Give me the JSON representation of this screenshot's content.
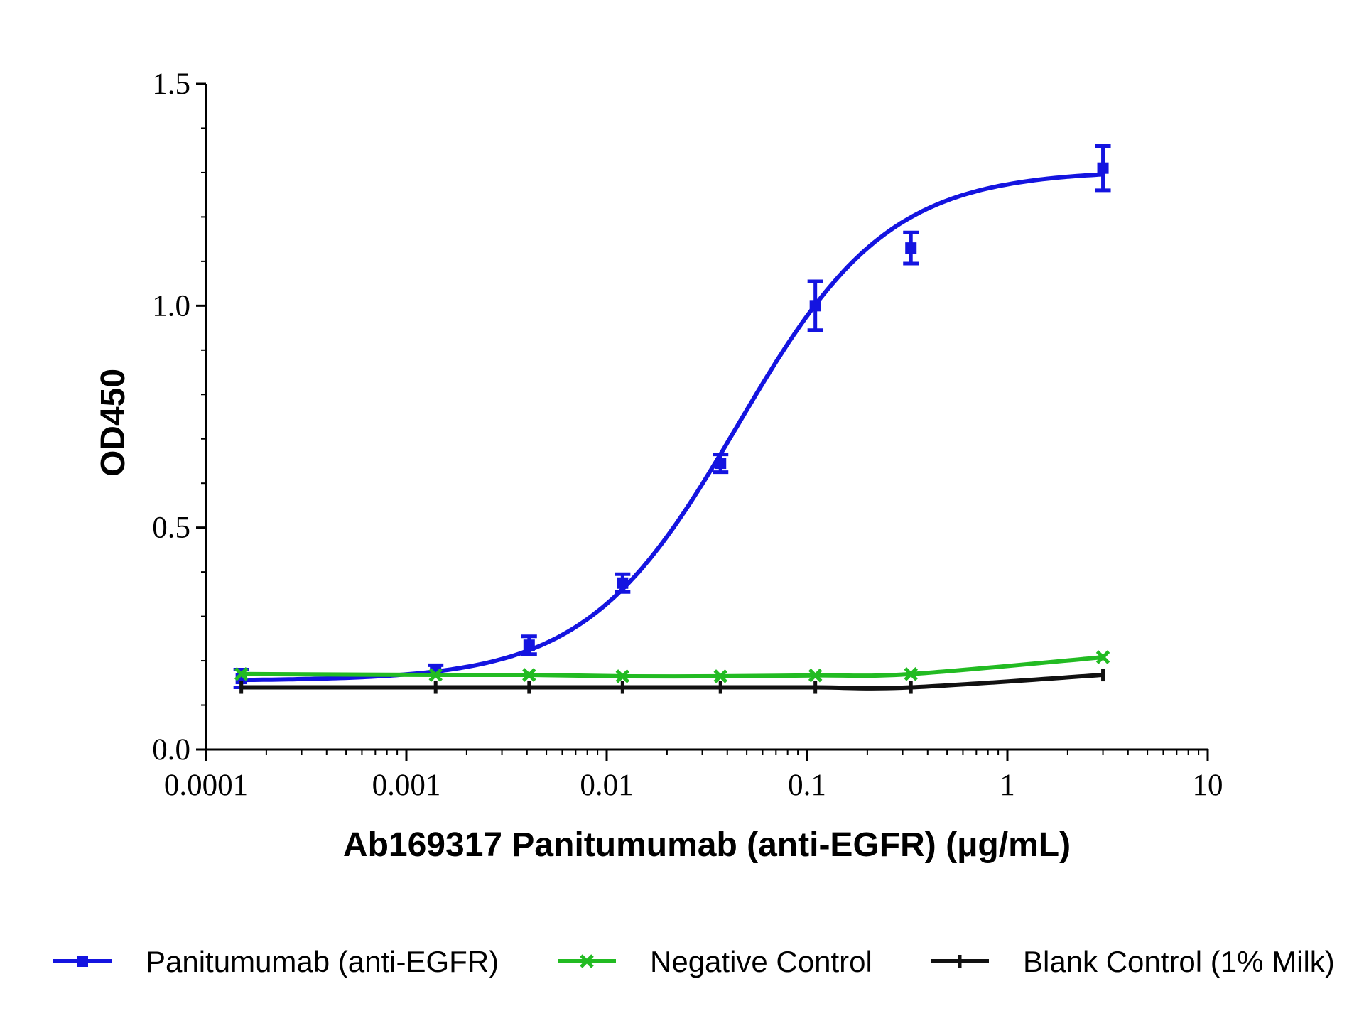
{
  "chart_data": {
    "type": "line",
    "title": "",
    "xlabel": "Ab169317 Panitumumab (anti-EGFR) (μg/mL)",
    "ylabel": "OD450",
    "xscale": "log",
    "xlim": [
      0.0001,
      10
    ],
    "ylim": [
      0.0,
      1.5
    ],
    "x_tick_labels": [
      "0.0001",
      "0.001",
      "0.01",
      "0.1",
      "1",
      "10"
    ],
    "y_tick_labels": [
      "0.0",
      "0.5",
      "1.0",
      "1.5"
    ],
    "grid": false,
    "legend_position": "bottom",
    "series": [
      {
        "name": "Panitumumab (anti-EGFR)",
        "color": "#1414e0",
        "marker": "square",
        "fit": "4PL",
        "x": [
          0.00015,
          0.0014,
          0.0041,
          0.012,
          0.037,
          0.11,
          0.33,
          3.0
        ],
        "y": [
          0.16,
          0.18,
          0.235,
          0.375,
          0.645,
          1.0,
          1.13,
          1.31
        ],
        "error": [
          0.02,
          0.01,
          0.02,
          0.02,
          0.02,
          0.055,
          0.035,
          0.05
        ]
      },
      {
        "name": "Negative Control",
        "color": "#22bb22",
        "marker": "x",
        "x": [
          0.00015,
          0.0014,
          0.0041,
          0.012,
          0.037,
          0.11,
          0.33,
          3.0
        ],
        "y": [
          0.17,
          0.168,
          0.168,
          0.165,
          0.165,
          0.167,
          0.17,
          0.208
        ]
      },
      {
        "name": "Blank Control (1% Milk)",
        "color": "#111111",
        "marker": "dash",
        "x": [
          0.00015,
          0.0014,
          0.0041,
          0.012,
          0.037,
          0.11,
          0.33,
          3.0
        ],
        "y": [
          0.14,
          0.14,
          0.14,
          0.14,
          0.14,
          0.14,
          0.14,
          0.168
        ]
      }
    ]
  }
}
